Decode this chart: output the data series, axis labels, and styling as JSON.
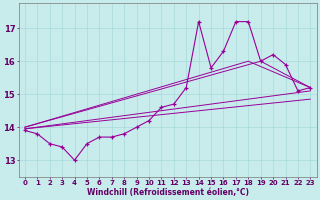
{
  "xlabel": "Windchill (Refroidissement éolien,°C)",
  "bg_color": "#c8ecec",
  "grid_color": "#a8d8d8",
  "line_color": "#990099",
  "xlim": [
    -0.5,
    23.5
  ],
  "ylim": [
    12.5,
    17.75
  ],
  "yticks": [
    13,
    14,
    15,
    16,
    17
  ],
  "xticks": [
    0,
    1,
    2,
    3,
    4,
    5,
    6,
    7,
    8,
    9,
    10,
    11,
    12,
    13,
    14,
    15,
    16,
    17,
    18,
    19,
    20,
    21,
    22,
    23
  ],
  "series1_x": [
    0,
    1,
    2,
    3,
    4,
    5,
    6,
    7,
    8,
    9,
    10,
    11,
    12,
    13,
    14,
    15,
    16,
    17,
    18,
    19,
    20,
    21,
    22,
    23
  ],
  "series1_y": [
    13.9,
    13.8,
    13.5,
    13.4,
    13.0,
    13.5,
    13.7,
    13.7,
    13.8,
    14.0,
    14.2,
    14.6,
    14.7,
    15.2,
    17.2,
    15.8,
    16.3,
    17.2,
    17.2,
    16.0,
    16.2,
    15.9,
    15.1,
    15.2
  ],
  "series2_x": [
    0,
    23
  ],
  "series2_y": [
    13.95,
    15.1
  ],
  "series3_x": [
    0,
    23
  ],
  "series3_y": [
    13.95,
    14.85
  ],
  "series4_x": [
    0,
    19,
    23
  ],
  "series4_y": [
    14.0,
    16.0,
    15.2
  ],
  "series5_x": [
    0,
    18,
    23
  ],
  "series5_y": [
    14.0,
    16.0,
    15.2
  ]
}
